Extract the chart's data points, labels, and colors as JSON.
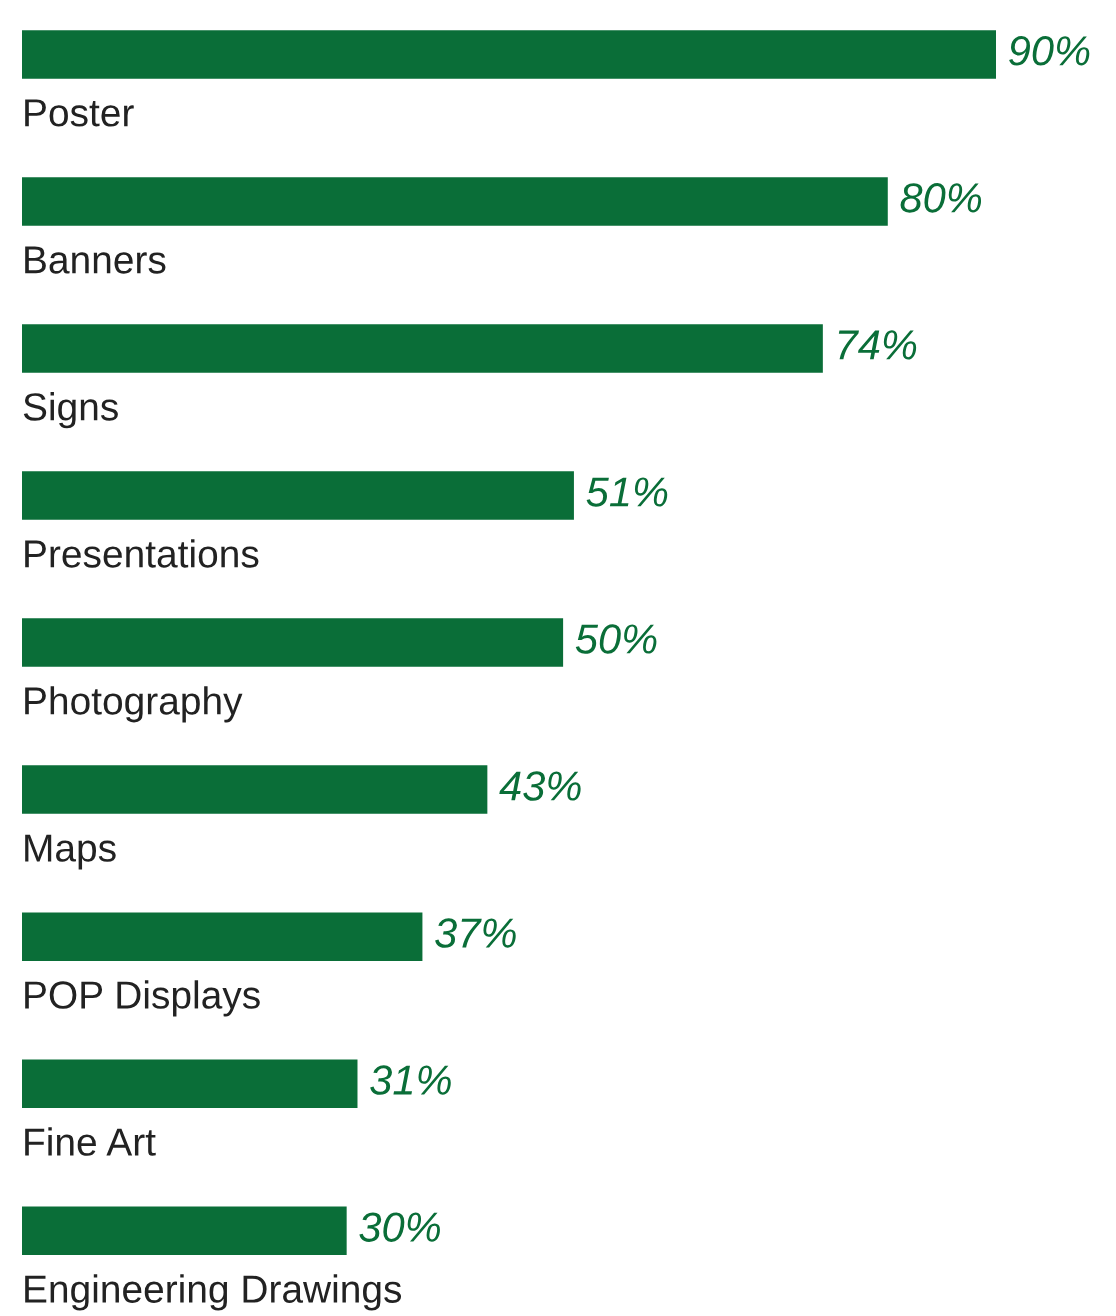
{
  "chart_data": {
    "type": "bar",
    "orientation": "horizontal",
    "categories": [
      "Poster",
      "Banners",
      "Signs",
      "Presentations",
      "Photography",
      "Maps",
      "POP Displays",
      "Fine Art",
      "Engineering Drawings"
    ],
    "values": [
      90,
      80,
      74,
      51,
      50,
      43,
      37,
      31,
      30
    ],
    "value_labels": [
      "90%",
      "80%",
      "74%",
      "51%",
      "50%",
      "43%",
      "37%",
      "31%",
      "30%"
    ],
    "color": "#0a6e38"
  }
}
